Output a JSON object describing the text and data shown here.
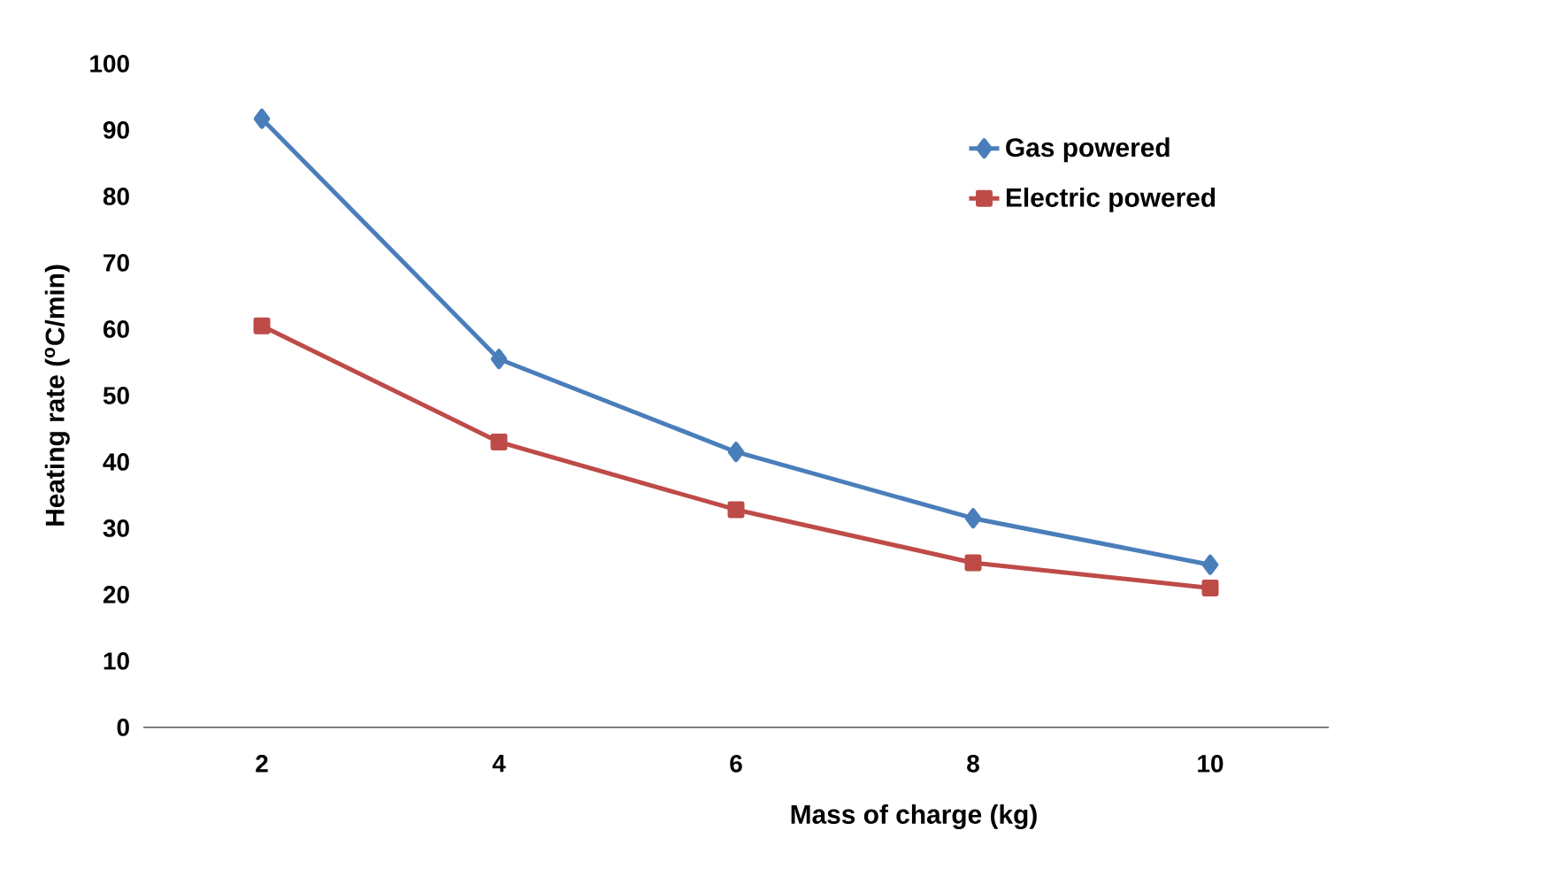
{
  "chart_data": {
    "type": "line",
    "xlabel": "Mass of charge (kg)",
    "ylabel": "Heating rate ($^{o}$C/min)",
    "categories": [
      "2",
      "4",
      "6",
      "8",
      "10"
    ],
    "series": [
      {
        "name": "Gas powered",
        "color": "#4a7ebb",
        "marker": "diamond",
        "values": [
          91.7,
          55.5,
          41.5,
          31.5,
          24.5
        ]
      },
      {
        "name": "Electric powered",
        "color": "#be4b48",
        "marker": "square",
        "values": [
          60.5,
          43,
          32.8,
          24.8,
          21
        ]
      }
    ],
    "ylim": [
      0,
      100
    ],
    "yticks": [
      0,
      10,
      20,
      30,
      40,
      50,
      60,
      70,
      80,
      90,
      100
    ],
    "grid": false,
    "legend": "right",
    "line_style": "solid"
  }
}
